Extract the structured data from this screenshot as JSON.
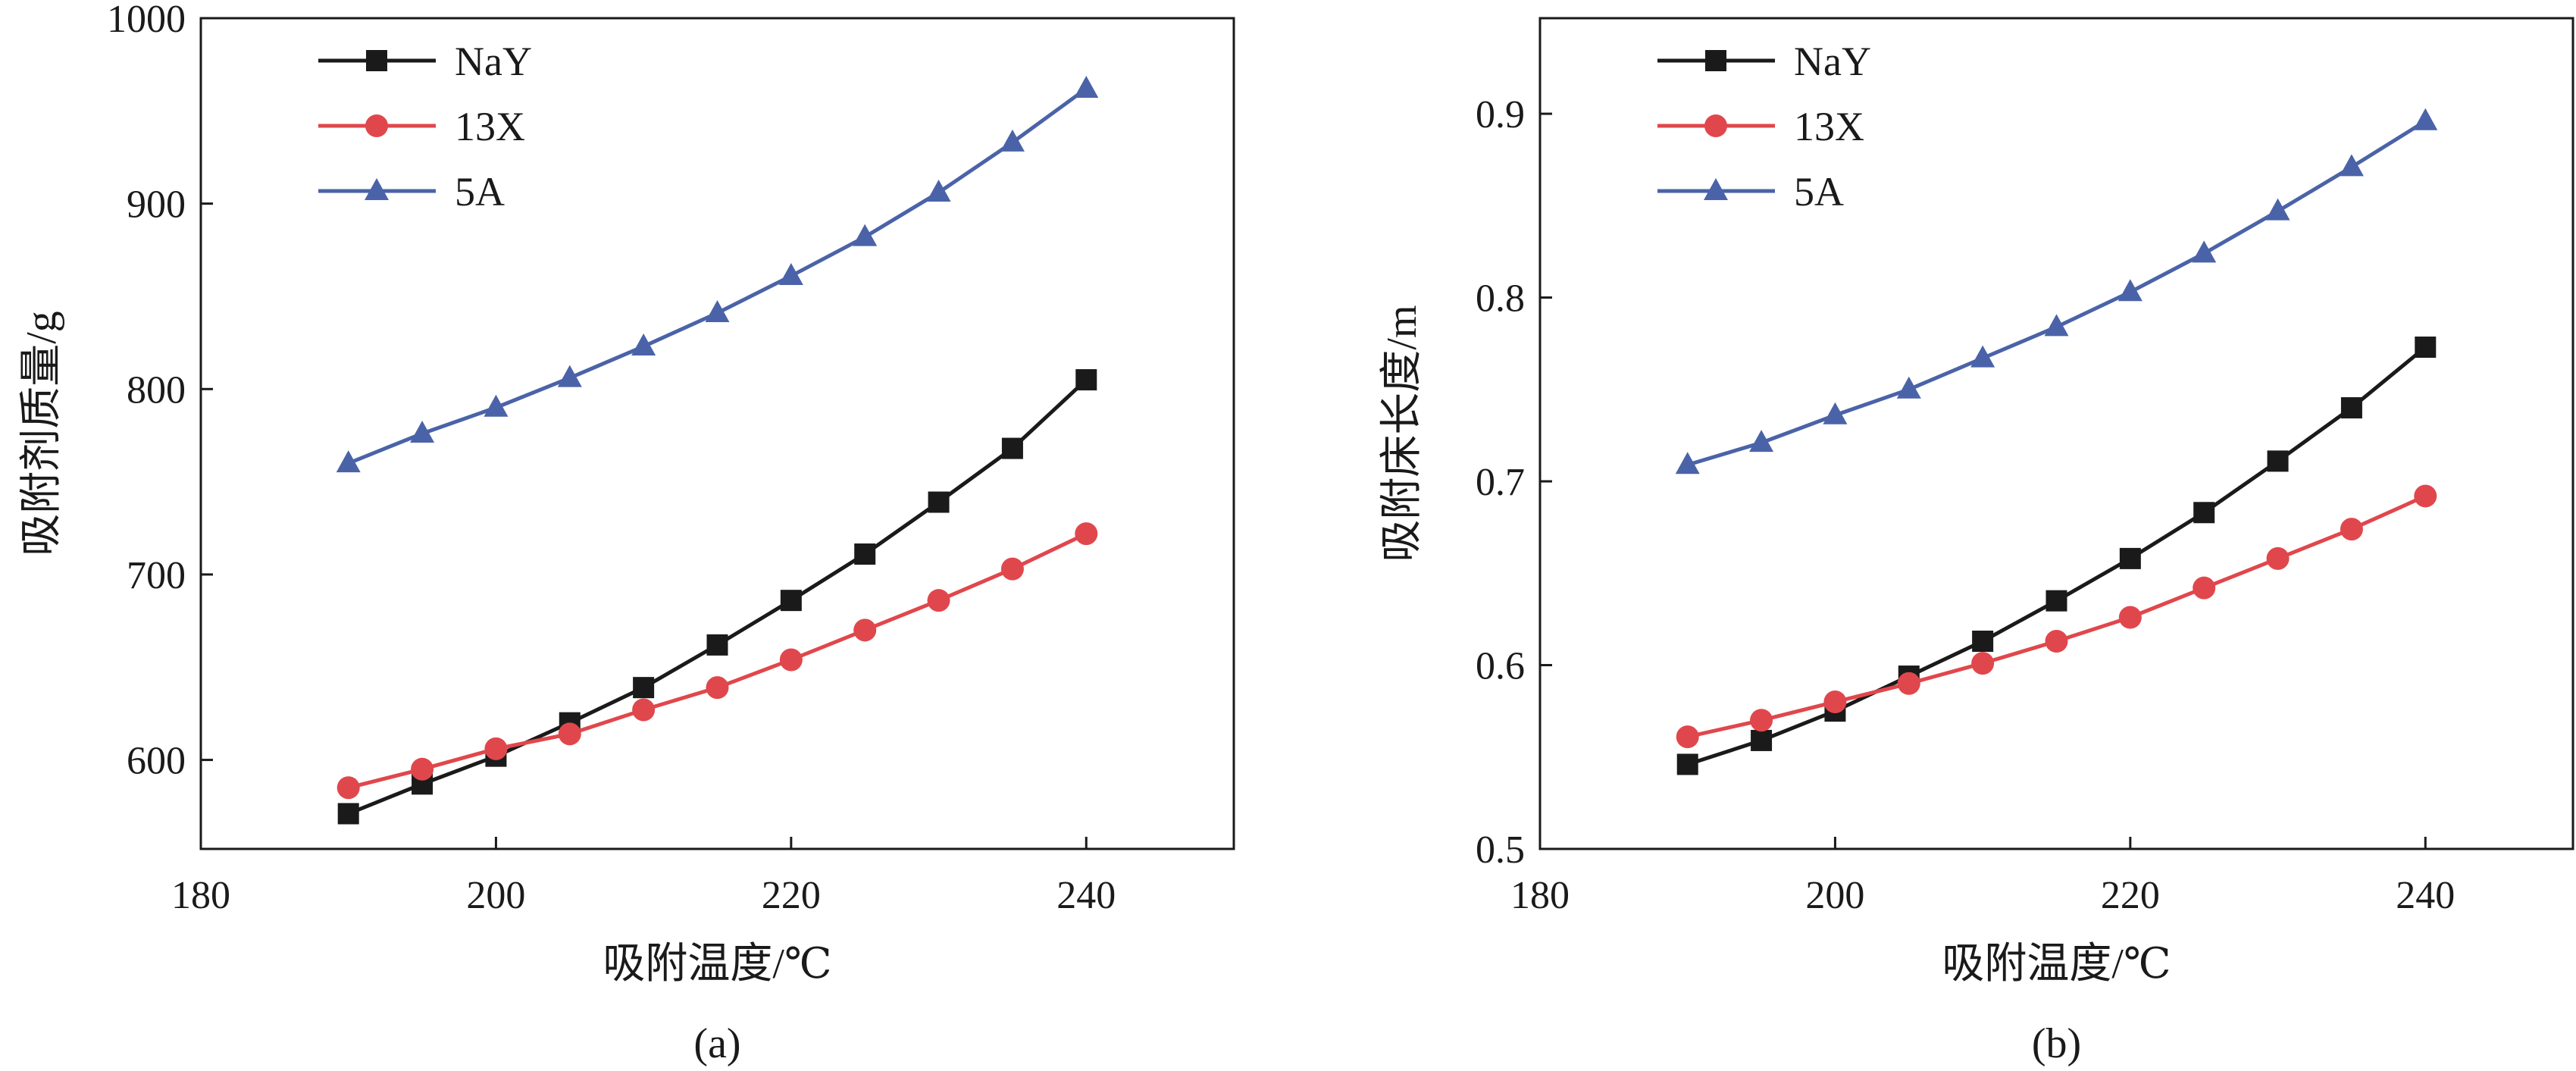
{
  "chart_data": [
    {
      "type": "line",
      "panel_label": "(a)",
      "xlabel": "吸附温度/℃",
      "ylabel": "吸附剂质量/g",
      "xlim": [
        180,
        250
      ],
      "ylim": [
        552,
        1000
      ],
      "xticks": [
        180,
        200,
        220,
        240
      ],
      "yticks": [
        600,
        700,
        800,
        900,
        1000
      ],
      "legend_position": "top-left",
      "x": [
        190,
        195,
        200,
        205,
        210,
        215,
        220,
        225,
        230,
        235,
        240
      ],
      "series": [
        {
          "name": "NaY",
          "marker": "square",
          "color": "#1a1a1a",
          "values": [
            571,
            587,
            602,
            620,
            639,
            662,
            686,
            711,
            739,
            768,
            805
          ]
        },
        {
          "name": "13X",
          "marker": "circle",
          "color": "#e0474c",
          "values": [
            585,
            595,
            606,
            614,
            627,
            639,
            654,
            670,
            686,
            703,
            722
          ]
        },
        {
          "name": "5A",
          "marker": "triangle",
          "color": "#4a63a8",
          "values": [
            760,
            776,
            790,
            806,
            823,
            841,
            861,
            882,
            906,
            933,
            962
          ]
        }
      ]
    },
    {
      "type": "line",
      "panel_label": "(b)",
      "xlabel": "吸附温度/℃",
      "ylabel": "吸附床长度/m",
      "xlim": [
        180,
        250
      ],
      "ylim": [
        0.5,
        0.952
      ],
      "xticks": [
        180,
        200,
        220,
        240
      ],
      "yticks": [
        0.5,
        0.6,
        0.7,
        0.8,
        0.9
      ],
      "legend_position": "top-left",
      "x": [
        190,
        195,
        200,
        205,
        210,
        215,
        220,
        225,
        230,
        235,
        240
      ],
      "series": [
        {
          "name": "NaY",
          "marker": "square",
          "color": "#1a1a1a",
          "values": [
            0.546,
            0.559,
            0.575,
            0.594,
            0.613,
            0.635,
            0.658,
            0.683,
            0.711,
            0.74,
            0.773
          ]
        },
        {
          "name": "13X",
          "marker": "circle",
          "color": "#e0474c",
          "values": [
            0.561,
            0.57,
            0.58,
            0.59,
            0.601,
            0.613,
            0.626,
            0.642,
            0.658,
            0.674,
            0.692
          ]
        },
        {
          "name": "5A",
          "marker": "triangle",
          "color": "#4a63a8",
          "values": [
            0.709,
            0.721,
            0.736,
            0.75,
            0.767,
            0.784,
            0.803,
            0.824,
            0.847,
            0.871,
            0.896
          ]
        }
      ]
    }
  ]
}
